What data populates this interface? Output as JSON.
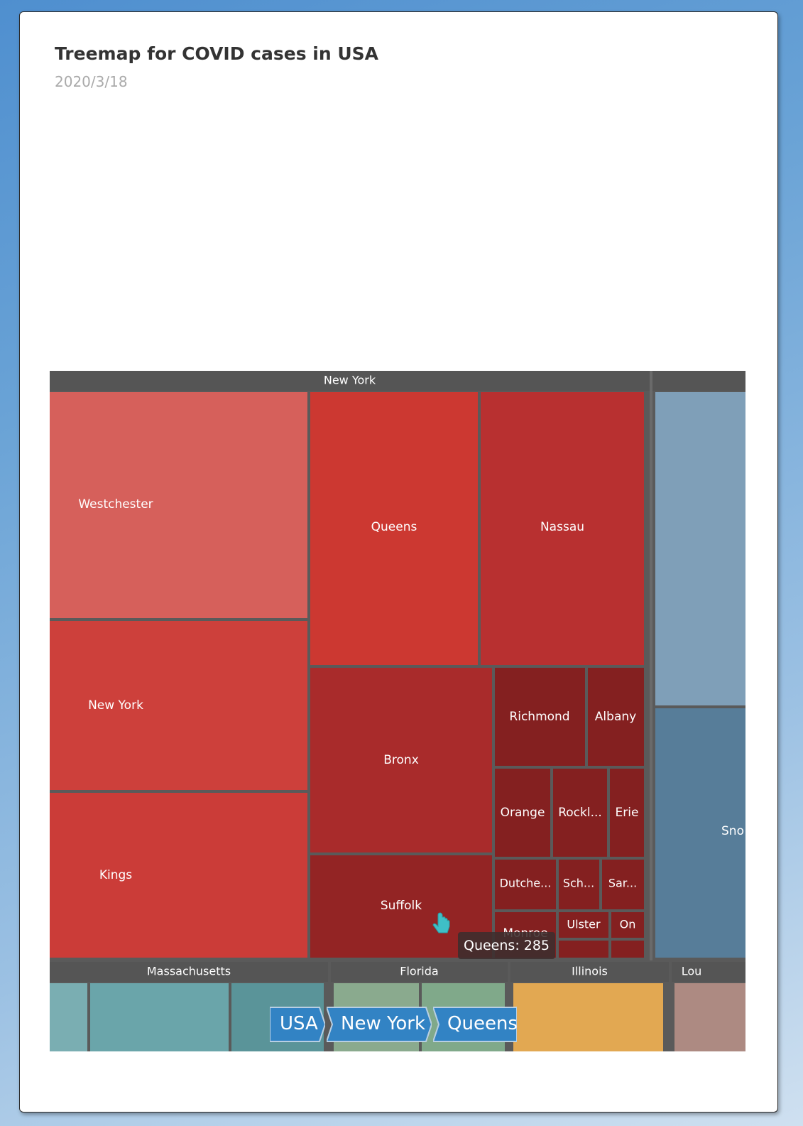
{
  "title": "Treemap for COVID cases in USA",
  "subtitle": "2020/3/18",
  "tooltip": "Queens: 285",
  "breadcrumb": [
    "USA",
    "New York",
    "Queens"
  ],
  "colors": {
    "breadcrumb": "#3283c4",
    "group_header": "#555555",
    "border": "#5a5a5a"
  },
  "chart_data": {
    "type": "treemap",
    "groups": [
      {
        "name": "New York",
        "children": [
          {
            "name": "Westchester"
          },
          {
            "name": "Queens",
            "value": 285
          },
          {
            "name": "Nassau"
          },
          {
            "name": "New York"
          },
          {
            "name": "Kings"
          },
          {
            "name": "Bronx"
          },
          {
            "name": "Suffolk"
          },
          {
            "name": "Richmond"
          },
          {
            "name": "Albany"
          },
          {
            "name": "Orange"
          },
          {
            "name": "Rockl..."
          },
          {
            "name": "Erie"
          },
          {
            "name": "Dutche..."
          },
          {
            "name": "Sch..."
          },
          {
            "name": "Sar..."
          },
          {
            "name": "Monroe"
          },
          {
            "name": "Ulster"
          },
          {
            "name": "On"
          }
        ]
      },
      {
        "name": "",
        "children": [
          {
            "name": ""
          },
          {
            "name": "Sno"
          }
        ]
      },
      {
        "name": "Massachusetts",
        "children": []
      },
      {
        "name": "Florida",
        "children": []
      },
      {
        "name": "Illinois",
        "children": []
      },
      {
        "name": "Lou",
        "children": []
      }
    ]
  }
}
